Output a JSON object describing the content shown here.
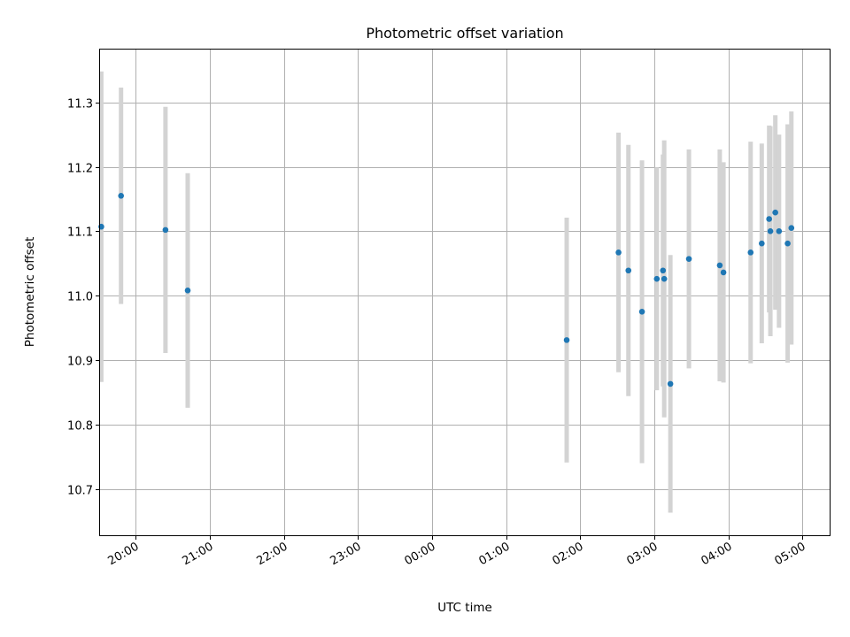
{
  "chart_data": {
    "type": "scatter",
    "title": "Photometric offset variation",
    "xlabel": "UTC time",
    "ylabel": "Photometric offset",
    "xlim": [
      "19:31",
      "05:22"
    ],
    "ylim": [
      10.628,
      11.382
    ],
    "x_ticks": [
      "20:00",
      "21:00",
      "22:00",
      "23:00",
      "00:00",
      "01:00",
      "02:00",
      "03:00",
      "04:00",
      "05:00"
    ],
    "y_ticks": [
      "10.7",
      "10.8",
      "10.9",
      "11.0",
      "11.1",
      "11.2",
      "11.3"
    ],
    "grid": true,
    "colors": {
      "point": "#1f77b4",
      "errorbar": "#d3d3d3",
      "grid": "#b0b0b0"
    },
    "series": [
      {
        "points": [
          {
            "x": "19:32",
            "y": 11.107,
            "err": 0.241
          },
          {
            "x": "19:48",
            "y": 11.155,
            "err": 0.168
          },
          {
            "x": "20:24",
            "y": 11.102,
            "err": 0.191
          },
          {
            "x": "20:42",
            "y": 11.008,
            "err": 0.182
          },
          {
            "x": "01:49",
            "y": 10.931,
            "err": 0.19
          },
          {
            "x": "02:31",
            "y": 11.067,
            "err": 0.186
          },
          {
            "x": "02:39",
            "y": 11.039,
            "err": 0.195
          },
          {
            "x": "02:50",
            "y": 10.975,
            "err": 0.235
          },
          {
            "x": "03:02",
            "y": 11.026,
            "err": 0.173
          },
          {
            "x": "03:07",
            "y": 11.039,
            "err": 0.18
          },
          {
            "x": "03:08",
            "y": 11.026,
            "err": 0.215
          },
          {
            "x": "03:13",
            "y": 10.863,
            "err": 0.2
          },
          {
            "x": "03:28",
            "y": 11.057,
            "err": 0.17
          },
          {
            "x": "03:53",
            "y": 11.047,
            "err": 0.18
          },
          {
            "x": "03:56",
            "y": 11.036,
            "err": 0.171
          },
          {
            "x": "04:18",
            "y": 11.067,
            "err": 0.172
          },
          {
            "x": "04:27",
            "y": 11.081,
            "err": 0.155
          },
          {
            "x": "04:33",
            "y": 11.119,
            "err": 0.145
          },
          {
            "x": "04:34",
            "y": 11.1,
            "err": 0.163
          },
          {
            "x": "04:38",
            "y": 11.129,
            "err": 0.151
          },
          {
            "x": "04:41",
            "y": 11.1,
            "err": 0.15
          },
          {
            "x": "04:48",
            "y": 11.081,
            "err": 0.185
          },
          {
            "x": "04:51",
            "y": 11.105,
            "err": 0.181
          }
        ]
      }
    ]
  }
}
